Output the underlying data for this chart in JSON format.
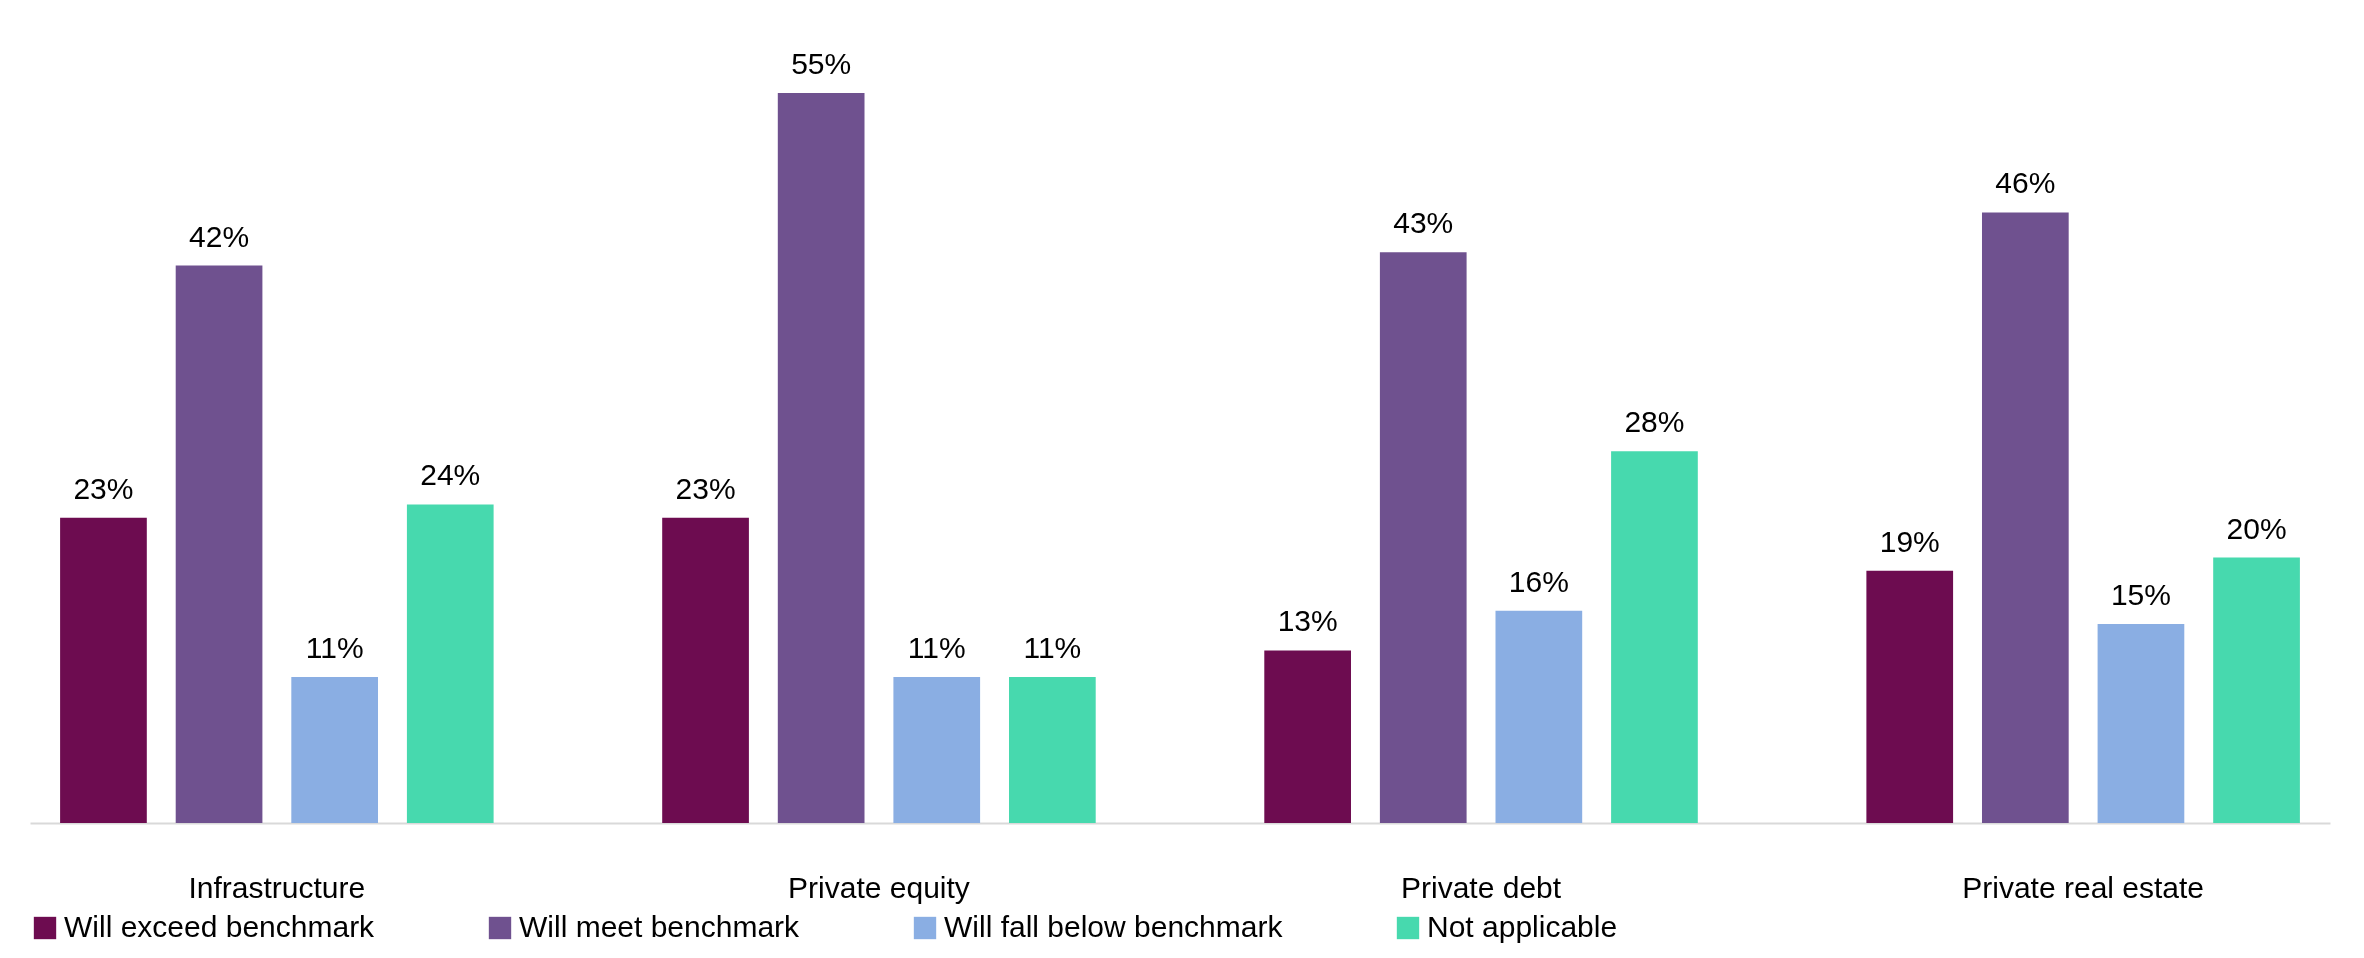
{
  "chart_data": {
    "type": "bar",
    "categories": [
      "Infrastructure",
      "Private equity",
      "Private debt",
      "Private real estate"
    ],
    "series": [
      {
        "name": "Will exceed benchmark",
        "color": "#6d0c50",
        "values": [
          23,
          23,
          13,
          19
        ],
        "value_labels": [
          "23%",
          "23%",
          "13%",
          "19%"
        ]
      },
      {
        "name": "Will meet benchmark",
        "color": "#6f518f",
        "values": [
          42,
          55,
          43,
          46
        ],
        "value_labels": [
          "42%",
          "55%",
          "43%",
          "46%"
        ]
      },
      {
        "name": "Will fall below benchmark",
        "color": "#8aaee3",
        "values": [
          11,
          11,
          16,
          15
        ],
        "value_labels": [
          "11%",
          "11%",
          "16%",
          "15%"
        ]
      },
      {
        "name": "Not applicable",
        "color": "#47d9ae",
        "values": [
          24,
          11,
          28,
          20
        ],
        "value_labels": [
          "24%",
          "11%",
          "28%",
          "20%"
        ]
      }
    ],
    "legend": "bottom",
    "grid": false,
    "tick_labels": "x"
  }
}
